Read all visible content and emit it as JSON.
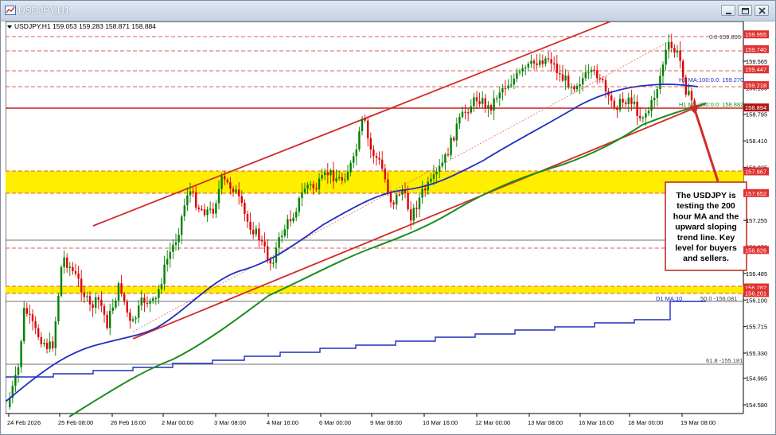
{
  "window": {
    "title": "USDJPY,H1"
  },
  "chart_data": {
    "type": "candlestick",
    "symbol_line": "USDJPY,H1  159.053 159.283 158.871 158.884",
    "colors": {
      "up": "#008000",
      "down": "#e00000",
      "ma100": "#1f2fbf",
      "ma200": "#1e8c1e",
      "trend": "#d42a2a",
      "zone": "#ffee00",
      "dailyma": "#1f2fbf",
      "level_line": "#d42a2a"
    },
    "price_ticks": [
      "159.565",
      "159.180",
      "158.795",
      "158.410",
      "158.025",
      "157.640",
      "157.255",
      "156.870",
      "156.485",
      "156.100",
      "155.715",
      "155.330",
      "154.965",
      "154.580"
    ],
    "x_labels": [
      "24 Feb 2026",
      "25 Feb 08:00",
      "26 Feb 16:00",
      "2 Mar 00:00",
      "3 Mar 08:00",
      "4 Mar 16:00",
      "6 Mar 00:00",
      "9 Mar 08:00",
      "10 Mar 16:00",
      "12 Mar 00:00",
      "13 Mar 08:00",
      "16 Mar 16:00",
      "18 Mar 00:00",
      "19 Mar 08:00"
    ],
    "price_flags": [
      {
        "value": "159.955"
      },
      {
        "value": "159.740"
      },
      {
        "value": "159.447"
      },
      {
        "value": "159.218"
      },
      {
        "value": "158.894",
        "dark": true
      },
      {
        "value": "157.967"
      },
      {
        "value": "157.652"
      },
      {
        "value": "156.826"
      },
      {
        "value": "156.282"
      },
      {
        "value": "156.201"
      }
    ],
    "line_labels": {
      "fib0": "0.0-159.895",
      "fib50": "50.0 -156.081",
      "fib618": "61.8 -155.181",
      "h1ma100": "H1 MA:100:0.0: 159.270",
      "h1ma200": "H1 MA:200:0.0: 158.882",
      "d1ma": "D1 MA:10"
    },
    "annotation": "The USDJPY is testing the 200 hour MA and the upward sloping trend line.  Key level for buyers and sellers.",
    "series": [
      {
        "name": "H1 MA 100",
        "values": [
          154.9,
          155.3,
          155.6,
          155.9,
          156.2,
          156.6,
          157.0,
          157.4,
          157.7,
          158.0,
          158.3,
          158.6,
          158.85,
          159.05,
          159.25,
          159.27
        ]
      },
      {
        "name": "H1 MA 200",
        "values": [
          154.4,
          154.7,
          155.1,
          155.6,
          156.0,
          156.4,
          156.8,
          157.1,
          157.45,
          157.75,
          158.05,
          158.35,
          158.62,
          158.8,
          158.88
        ]
      }
    ]
  }
}
